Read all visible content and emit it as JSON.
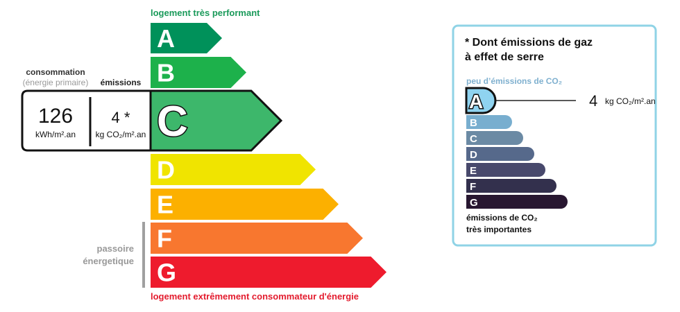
{
  "energy": {
    "top_label": "logement très performant",
    "bottom_label": "logement extrêmement consommateur d'énergie",
    "passoire_line1": "passoire",
    "passoire_line2": "énergetique",
    "consumption_label": "consommation",
    "consumption_sublabel": "(énergie primaire)",
    "emissions_label": "émissions",
    "consumption_value": "126",
    "consumption_unit": "kWh/m².an",
    "emissions_value": "4 *",
    "emissions_unit": "kg CO₂/m².an",
    "current_class": "C",
    "classes": [
      {
        "letter": "A",
        "color": "#00915a"
      },
      {
        "letter": "B",
        "color": "#1db14b"
      },
      {
        "letter": "C",
        "color": "#3db76b"
      },
      {
        "letter": "D",
        "color": "#f0e400"
      },
      {
        "letter": "E",
        "color": "#fcb000"
      },
      {
        "letter": "F",
        "color": "#f8772f"
      },
      {
        "letter": "G",
        "color": "#ee1b2d"
      }
    ],
    "top_label_color": "#1a9a5a",
    "bottom_label_color": "#e31b2d"
  },
  "ghg": {
    "title_line1": "* Dont émissions de gaz",
    "title_line2": "à effet de serre",
    "top_label": "peu d’émissions de CO₂",
    "bottom_line1": "émissions de CO₂",
    "bottom_line2": "très importantes",
    "value": "4",
    "unit": "kg CO₂/m².an",
    "current_class": "A",
    "border_color": "#8fd3e6",
    "classes": [
      {
        "letter": "A",
        "color": "#8fd3f0"
      },
      {
        "letter": "B",
        "color": "#78aecf"
      },
      {
        "letter": "C",
        "color": "#6b8aa4"
      },
      {
        "letter": "D",
        "color": "#56698b"
      },
      {
        "letter": "E",
        "color": "#48496c"
      },
      {
        "letter": "F",
        "color": "#33304d"
      },
      {
        "letter": "G",
        "color": "#281731"
      }
    ]
  }
}
